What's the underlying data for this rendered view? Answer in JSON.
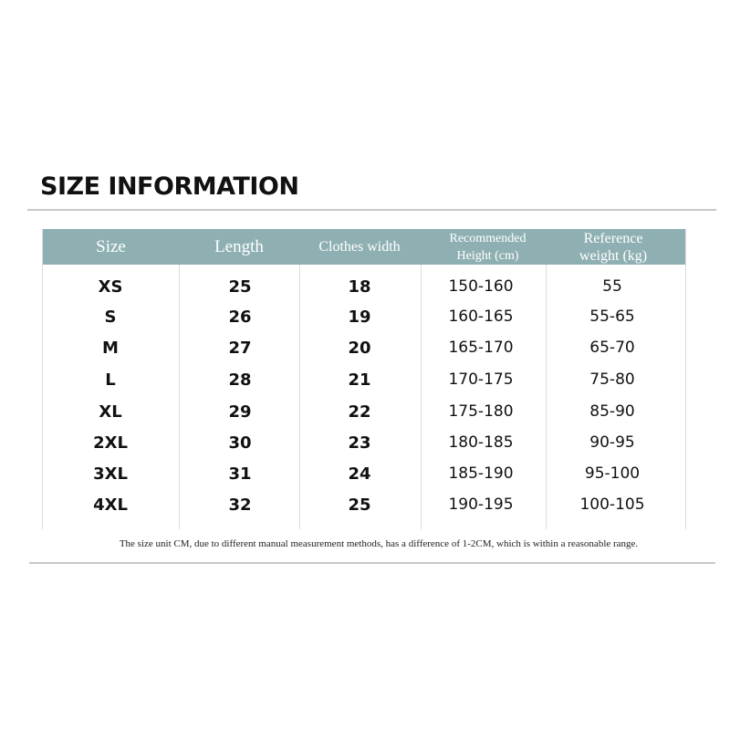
{
  "title": "SIZE INFORMATION",
  "header_color": "#8fb0b3",
  "columns": [
    "Size",
    "Length",
    "Clothes width",
    "Recommended Height (cm)",
    "Reference weight (kg)"
  ],
  "rows": [
    [
      "XS",
      "25",
      "18",
      "150-160",
      "55"
    ],
    [
      "S",
      "26",
      "19",
      "160-165",
      "55-65"
    ],
    [
      "M",
      "27",
      "20",
      "165-170",
      "65-70"
    ],
    [
      "L",
      "28",
      "21",
      "170-175",
      "75-80"
    ],
    [
      "XL",
      "29",
      "22",
      "175-180",
      "85-90"
    ],
    [
      "2XL",
      "30",
      "23",
      "180-185",
      "90-95"
    ],
    [
      "3XL",
      "31",
      "24",
      "185-190",
      "95-100"
    ],
    [
      "4XL",
      "32",
      "25",
      "190-195",
      "100-105"
    ]
  ],
  "note": "The size unit CM, due to different manual measurement methods, has a difference of 1-2CM, which is within a reasonable range."
}
